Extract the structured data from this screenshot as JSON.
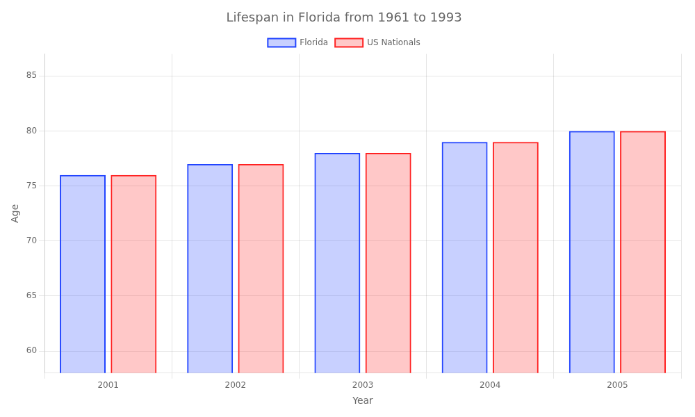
{
  "chart_data": {
    "type": "bar",
    "title": "Lifespan in Florida from 1961 to 1993",
    "xlabel": "Year",
    "ylabel": "Age",
    "categories": [
      "2001",
      "2002",
      "2003",
      "2004",
      "2005"
    ],
    "series": [
      {
        "name": "Florida",
        "color": "#2244ff",
        "values": [
          76,
          77,
          78,
          79,
          80
        ]
      },
      {
        "name": "US Nationals",
        "color": "#ff2222",
        "values": [
          76,
          77,
          78,
          79,
          80
        ]
      }
    ],
    "ylim": [
      58,
      87
    ],
    "yticks": [
      60,
      65,
      70,
      75,
      80,
      85
    ],
    "grid": true,
    "legend": "top"
  }
}
